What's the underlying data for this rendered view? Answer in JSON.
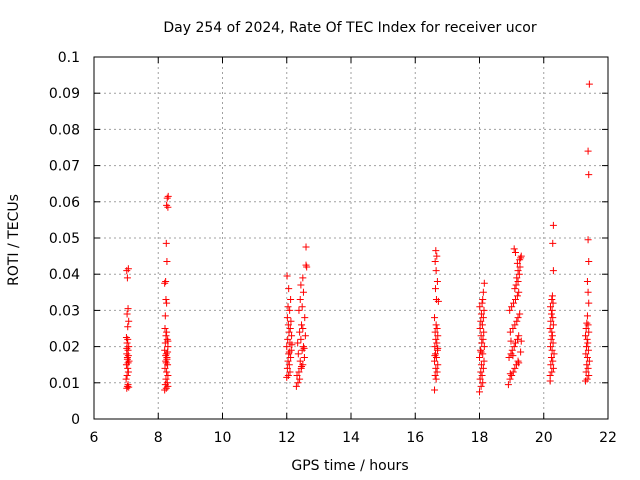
{
  "chart_data": {
    "type": "scatter",
    "title": "Day 254 of 2024, Rate Of TEC Index for receiver ucor",
    "xlabel": "GPS time / hours",
    "ylabel": "ROTI / TECUs",
    "xlim": [
      6,
      22
    ],
    "ylim": [
      0,
      0.1
    ],
    "x_ticks": [
      6,
      8,
      10,
      12,
      14,
      16,
      18,
      20,
      22
    ],
    "y_ticks": [
      0,
      0.01,
      0.02,
      0.03,
      0.04,
      0.05,
      0.06,
      0.07,
      0.08,
      0.09,
      0.1
    ],
    "x_tick_labels": [
      "6",
      "8",
      "10",
      "12",
      "14",
      "16",
      "18",
      "20",
      "22"
    ],
    "y_tick_labels": [
      "0",
      "0.01",
      "0.02",
      "0.03",
      "0.04",
      "0.05",
      "0.06",
      "0.07",
      "0.08",
      "0.09",
      "0.1"
    ],
    "grid": true,
    "marker": "+",
    "series": [
      {
        "name": "ROTI",
        "color": "#ff0000",
        "points": [
          [
            7.02,
            0.0085
          ],
          [
            7.04,
            0.009
          ],
          [
            7.06,
            0.0095
          ],
          [
            7.08,
            0.0088
          ],
          [
            7.0,
            0.011
          ],
          [
            7.03,
            0.012
          ],
          [
            7.07,
            0.013
          ],
          [
            7.05,
            0.014
          ],
          [
            7.01,
            0.015
          ],
          [
            7.09,
            0.016
          ],
          [
            7.04,
            0.017
          ],
          [
            7.02,
            0.018
          ],
          [
            7.06,
            0.019
          ],
          [
            7.08,
            0.02
          ],
          [
            7.03,
            0.021
          ],
          [
            7.05,
            0.022
          ],
          [
            7.01,
            0.0225
          ],
          [
            7.07,
            0.0175
          ],
          [
            7.04,
            0.0165
          ],
          [
            7.06,
            0.0155
          ],
          [
            7.02,
            0.0195
          ],
          [
            7.05,
            0.0255
          ],
          [
            7.08,
            0.027
          ],
          [
            7.03,
            0.029
          ],
          [
            7.06,
            0.0305
          ],
          [
            7.04,
            0.039
          ],
          [
            7.02,
            0.041
          ],
          [
            7.07,
            0.0415
          ],
          [
            8.2,
            0.008
          ],
          [
            8.25,
            0.0085
          ],
          [
            8.3,
            0.009
          ],
          [
            8.22,
            0.0095
          ],
          [
            8.28,
            0.01
          ],
          [
            8.24,
            0.011
          ],
          [
            8.3,
            0.012
          ],
          [
            8.26,
            0.013
          ],
          [
            8.21,
            0.014
          ],
          [
            8.29,
            0.015
          ],
          [
            8.23,
            0.016
          ],
          [
            8.27,
            0.017
          ],
          [
            8.25,
            0.018
          ],
          [
            8.2,
            0.019
          ],
          [
            8.3,
            0.02
          ],
          [
            8.22,
            0.021
          ],
          [
            8.28,
            0.022
          ],
          [
            8.24,
            0.023
          ],
          [
            8.26,
            0.024
          ],
          [
            8.21,
            0.025
          ],
          [
            8.29,
            0.0185
          ],
          [
            8.23,
            0.0175
          ],
          [
            8.27,
            0.0165
          ],
          [
            8.25,
            0.0155
          ],
          [
            8.3,
            0.0215
          ],
          [
            8.22,
            0.0285
          ],
          [
            8.26,
            0.032
          ],
          [
            8.24,
            0.033
          ],
          [
            8.2,
            0.0375
          ],
          [
            8.23,
            0.038
          ],
          [
            8.27,
            0.0435
          ],
          [
            8.25,
            0.0485
          ],
          [
            8.3,
            0.0585
          ],
          [
            8.26,
            0.059
          ],
          [
            8.28,
            0.061
          ],
          [
            8.31,
            0.0615
          ],
          [
            12.0,
            0.0115
          ],
          [
            12.05,
            0.012
          ],
          [
            12.1,
            0.013
          ],
          [
            12.02,
            0.014
          ],
          [
            12.08,
            0.015
          ],
          [
            12.04,
            0.016
          ],
          [
            12.12,
            0.017
          ],
          [
            12.06,
            0.018
          ],
          [
            12.14,
            0.019
          ],
          [
            12.0,
            0.02
          ],
          [
            12.1,
            0.021
          ],
          [
            12.03,
            0.022
          ],
          [
            12.15,
            0.023
          ],
          [
            12.07,
            0.024
          ],
          [
            12.11,
            0.025
          ],
          [
            12.05,
            0.026
          ],
          [
            12.13,
            0.027
          ],
          [
            12.02,
            0.028
          ],
          [
            12.09,
            0.03
          ],
          [
            12.04,
            0.031
          ],
          [
            12.12,
            0.033
          ],
          [
            12.06,
            0.036
          ],
          [
            12.01,
            0.0395
          ],
          [
            12.08,
            0.0185
          ],
          [
            12.16,
            0.0205
          ],
          [
            12.3,
            0.009
          ],
          [
            12.35,
            0.01
          ],
          [
            12.4,
            0.011
          ],
          [
            12.32,
            0.012
          ],
          [
            12.38,
            0.013
          ],
          [
            12.45,
            0.014
          ],
          [
            12.5,
            0.015
          ],
          [
            12.42,
            0.016
          ],
          [
            12.55,
            0.017
          ],
          [
            12.36,
            0.018
          ],
          [
            12.48,
            0.019
          ],
          [
            12.52,
            0.02
          ],
          [
            12.34,
            0.021
          ],
          [
            12.44,
            0.022
          ],
          [
            12.58,
            0.023
          ],
          [
            12.4,
            0.024
          ],
          [
            12.5,
            0.025
          ],
          [
            12.46,
            0.026
          ],
          [
            12.56,
            0.028
          ],
          [
            12.38,
            0.03
          ],
          [
            12.48,
            0.031
          ],
          [
            12.42,
            0.033
          ],
          [
            12.52,
            0.035
          ],
          [
            12.44,
            0.037
          ],
          [
            12.5,
            0.039
          ],
          [
            12.62,
            0.042
          ],
          [
            12.6,
            0.0425
          ],
          [
            12.6,
            0.0475
          ],
          [
            12.54,
            0.0195
          ],
          [
            12.46,
            0.0145
          ],
          [
            16.6,
            0.008
          ],
          [
            16.65,
            0.011
          ],
          [
            16.62,
            0.012
          ],
          [
            16.68,
            0.013
          ],
          [
            16.64,
            0.014
          ],
          [
            16.7,
            0.015
          ],
          [
            16.6,
            0.016
          ],
          [
            16.66,
            0.017
          ],
          [
            16.63,
            0.018
          ],
          [
            16.69,
            0.019
          ],
          [
            16.61,
            0.02
          ],
          [
            16.67,
            0.021
          ],
          [
            16.64,
            0.022
          ],
          [
            16.7,
            0.023
          ],
          [
            16.62,
            0.024
          ],
          [
            16.68,
            0.025
          ],
          [
            16.65,
            0.026
          ],
          [
            16.6,
            0.028
          ],
          [
            16.72,
            0.0325
          ],
          [
            16.66,
            0.033
          ],
          [
            16.63,
            0.036
          ],
          [
            16.69,
            0.038
          ],
          [
            16.65,
            0.041
          ],
          [
            16.62,
            0.0435
          ],
          [
            16.67,
            0.045
          ],
          [
            16.64,
            0.0465
          ],
          [
            16.7,
            0.0195
          ],
          [
            16.61,
            0.0175
          ],
          [
            18.0,
            0.0075
          ],
          [
            18.05,
            0.009
          ],
          [
            18.1,
            0.01
          ],
          [
            18.02,
            0.011
          ],
          [
            18.08,
            0.012
          ],
          [
            18.04,
            0.013
          ],
          [
            18.12,
            0.014
          ],
          [
            18.06,
            0.015
          ],
          [
            18.14,
            0.016
          ],
          [
            18.0,
            0.017
          ],
          [
            18.1,
            0.018
          ],
          [
            18.03,
            0.019
          ],
          [
            18.15,
            0.02
          ],
          [
            18.07,
            0.021
          ],
          [
            18.11,
            0.022
          ],
          [
            18.05,
            0.023
          ],
          [
            18.13,
            0.024
          ],
          [
            18.02,
            0.025
          ],
          [
            18.09,
            0.026
          ],
          [
            18.04,
            0.027
          ],
          [
            18.12,
            0.028
          ],
          [
            18.06,
            0.029
          ],
          [
            18.14,
            0.03
          ],
          [
            18.01,
            0.031
          ],
          [
            18.08,
            0.032
          ],
          [
            18.1,
            0.033
          ],
          [
            18.12,
            0.035
          ],
          [
            18.15,
            0.0375
          ],
          [
            18.05,
            0.0185
          ],
          [
            18.9,
            0.0095
          ],
          [
            18.95,
            0.011
          ],
          [
            19.0,
            0.012
          ],
          [
            19.05,
            0.013
          ],
          [
            19.1,
            0.014
          ],
          [
            19.15,
            0.015
          ],
          [
            19.2,
            0.016
          ],
          [
            18.92,
            0.017
          ],
          [
            18.98,
            0.018
          ],
          [
            19.02,
            0.019
          ],
          [
            19.08,
            0.02
          ],
          [
            19.12,
            0.021
          ],
          [
            19.18,
            0.022
          ],
          [
            19.22,
            0.023
          ],
          [
            18.96,
            0.024
          ],
          [
            19.04,
            0.025
          ],
          [
            19.1,
            0.026
          ],
          [
            19.16,
            0.027
          ],
          [
            19.2,
            0.028
          ],
          [
            19.25,
            0.029
          ],
          [
            18.94,
            0.03
          ],
          [
            19.0,
            0.031
          ],
          [
            19.06,
            0.032
          ],
          [
            19.12,
            0.033
          ],
          [
            19.18,
            0.034
          ],
          [
            19.22,
            0.035
          ],
          [
            19.1,
            0.036
          ],
          [
            19.14,
            0.037
          ],
          [
            19.2,
            0.038
          ],
          [
            19.16,
            0.039
          ],
          [
            19.24,
            0.04
          ],
          [
            19.2,
            0.041
          ],
          [
            19.26,
            0.042
          ],
          [
            19.18,
            0.043
          ],
          [
            19.25,
            0.044
          ],
          [
            19.28,
            0.0445
          ],
          [
            19.3,
            0.045
          ],
          [
            19.12,
            0.046
          ],
          [
            19.08,
            0.047
          ],
          [
            18.96,
            0.0125
          ],
          [
            19.22,
            0.0155
          ],
          [
            19.28,
            0.0185
          ],
          [
            19.3,
            0.0215
          ],
          [
            19.04,
            0.0175
          ],
          [
            18.98,
            0.0215
          ],
          [
            20.2,
            0.012
          ],
          [
            20.25,
            0.013
          ],
          [
            20.3,
            0.014
          ],
          [
            20.22,
            0.015
          ],
          [
            20.28,
            0.016
          ],
          [
            20.24,
            0.017
          ],
          [
            20.32,
            0.018
          ],
          [
            20.26,
            0.019
          ],
          [
            20.21,
            0.02
          ],
          [
            20.29,
            0.021
          ],
          [
            20.23,
            0.022
          ],
          [
            20.27,
            0.023
          ],
          [
            20.25,
            0.024
          ],
          [
            20.2,
            0.025
          ],
          [
            20.3,
            0.026
          ],
          [
            20.22,
            0.027
          ],
          [
            20.28,
            0.028
          ],
          [
            20.24,
            0.029
          ],
          [
            20.26,
            0.03
          ],
          [
            20.21,
            0.031
          ],
          [
            20.29,
            0.032
          ],
          [
            20.25,
            0.033
          ],
          [
            20.27,
            0.034
          ],
          [
            20.2,
            0.0105
          ],
          [
            20.3,
            0.041
          ],
          [
            20.28,
            0.0485
          ],
          [
            20.3,
            0.0535
          ],
          [
            21.3,
            0.0105
          ],
          [
            21.35,
            0.011
          ],
          [
            21.4,
            0.012
          ],
          [
            21.32,
            0.013
          ],
          [
            21.38,
            0.014
          ],
          [
            21.34,
            0.015
          ],
          [
            21.42,
            0.016
          ],
          [
            21.36,
            0.017
          ],
          [
            21.31,
            0.018
          ],
          [
            21.39,
            0.019
          ],
          [
            21.33,
            0.02
          ],
          [
            21.37,
            0.021
          ],
          [
            21.35,
            0.022
          ],
          [
            21.3,
            0.023
          ],
          [
            21.4,
            0.024
          ],
          [
            21.32,
            0.025
          ],
          [
            21.38,
            0.026
          ],
          [
            21.34,
            0.0265
          ],
          [
            21.36,
            0.0285
          ],
          [
            21.4,
            0.032
          ],
          [
            21.38,
            0.035
          ],
          [
            21.36,
            0.038
          ],
          [
            21.4,
            0.0435
          ],
          [
            21.38,
            0.0495
          ],
          [
            21.4,
            0.0675
          ],
          [
            21.38,
            0.074
          ],
          [
            21.42,
            0.0925
          ]
        ]
      }
    ]
  }
}
